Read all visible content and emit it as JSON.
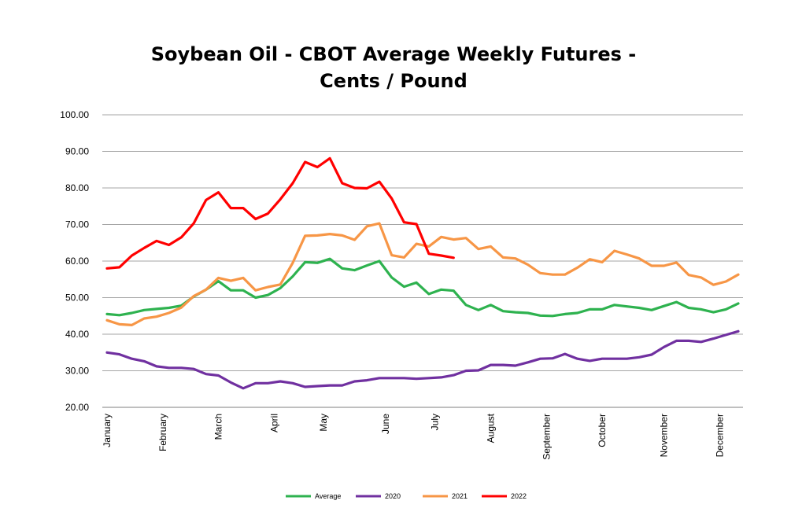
{
  "chart_data": {
    "type": "line",
    "title": "Soybean Oil - CBOT Average Weekly Futures - Cents / Pound",
    "xlabel": "",
    "ylabel": "",
    "ylim": [
      20,
      100
    ],
    "yticks": [
      "20.00",
      "30.00",
      "40.00",
      "50.00",
      "60.00",
      "70.00",
      "80.00",
      "90.00",
      "100.00"
    ],
    "grid": true,
    "legend_position": "bottom",
    "x_month_labels": [
      {
        "label": "January",
        "week": 1
      },
      {
        "label": "February",
        "week": 5.5
      },
      {
        "label": "March",
        "week": 10
      },
      {
        "label": "April",
        "week": 14.5
      },
      {
        "label": "May",
        "week": 18.5
      },
      {
        "label": "June",
        "week": 23.5
      },
      {
        "label": "July",
        "week": 27.5
      },
      {
        "label": "August",
        "week": 32
      },
      {
        "label": "September",
        "week": 36.5
      },
      {
        "label": "October",
        "week": 41
      },
      {
        "label": "November",
        "week": 46
      },
      {
        "label": "December",
        "week": 50.5
      }
    ],
    "series": [
      {
        "name": "Average",
        "color": "#2eb24f",
        "values": [
          45.5,
          45.2,
          45.8,
          46.6,
          46.9,
          47.2,
          47.8,
          50.3,
          52.2,
          54.5,
          52.0,
          52.0,
          50.0,
          50.7,
          52.6,
          55.8,
          59.7,
          59.5,
          60.6,
          58.0,
          57.5,
          58.8,
          60.0,
          55.5,
          53.0,
          54.1,
          51.0,
          52.2,
          51.9,
          48.0,
          46.6,
          48.0,
          46.3,
          46.0,
          45.8,
          45.1,
          45.0,
          45.5,
          45.8,
          46.8,
          46.8,
          48.0,
          47.6,
          47.2,
          46.6,
          47.7,
          48.8,
          47.2,
          46.8,
          46.0,
          46.8,
          48.4
        ]
      },
      {
        "name": "2020",
        "color": "#7030a0",
        "values": [
          35.0,
          34.5,
          33.3,
          32.6,
          31.2,
          30.8,
          30.8,
          30.5,
          29.1,
          28.7,
          26.8,
          25.2,
          26.6,
          26.6,
          27.1,
          26.6,
          25.6,
          25.8,
          26.0,
          26.0,
          27.1,
          27.4,
          28.0,
          28.0,
          28.0,
          27.8,
          28.0,
          28.2,
          28.8,
          30.0,
          30.1,
          31.6,
          31.6,
          31.4,
          32.3,
          33.3,
          33.4,
          34.6,
          33.3,
          32.7,
          33.3,
          33.3,
          33.3,
          33.7,
          34.4,
          36.5,
          38.2,
          38.2,
          37.9,
          38.8,
          39.8,
          40.8
        ]
      },
      {
        "name": "2021",
        "color": "#f79646",
        "values": [
          43.8,
          42.7,
          42.5,
          44.3,
          44.8,
          45.8,
          47.3,
          50.4,
          52.2,
          55.4,
          54.6,
          55.4,
          52.0,
          52.9,
          53.6,
          59.5,
          66.9,
          67.0,
          67.4,
          67.0,
          65.8,
          69.5,
          70.3,
          61.6,
          61.0,
          64.7,
          64.0,
          66.6,
          65.9,
          66.3,
          63.3,
          64.0,
          61.0,
          60.7,
          59.0,
          56.7,
          56.3,
          56.3,
          58.2,
          60.5,
          59.7,
          62.8,
          61.8,
          60.7,
          58.7,
          58.7,
          59.6,
          56.2,
          55.5,
          53.5,
          54.4,
          56.3
        ]
      },
      {
        "name": "2022",
        "color": "#ff0000",
        "values": [
          58.0,
          58.3,
          61.5,
          63.6,
          65.5,
          64.4,
          66.5,
          70.3,
          76.7,
          78.8,
          74.5,
          74.5,
          71.5,
          73.0,
          76.9,
          81.3,
          87.1,
          85.7,
          88.1,
          81.3,
          80.0,
          79.9,
          81.7,
          77.1,
          70.6,
          70.1,
          62.0,
          61.5,
          60.9
        ]
      }
    ]
  }
}
